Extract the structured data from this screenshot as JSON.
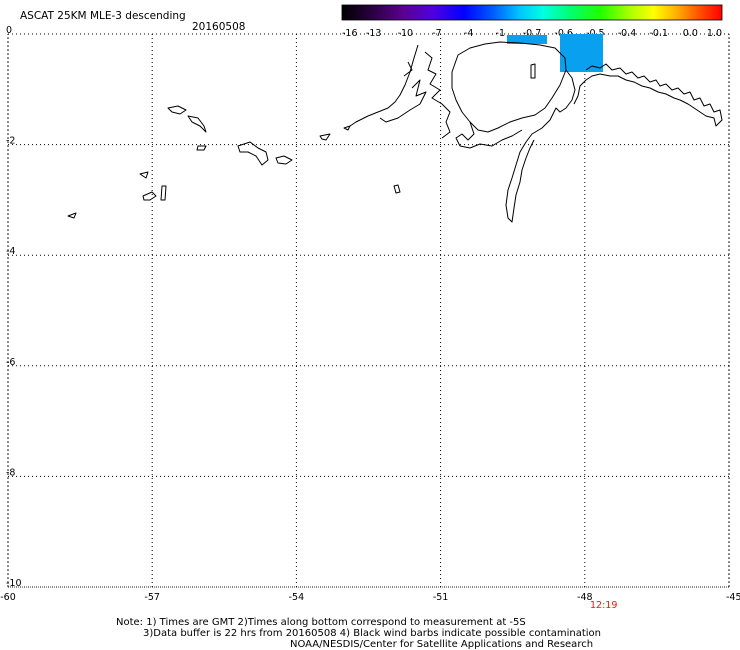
{
  "header": {
    "title": "ASCAT 25KM MLE-3 descending",
    "date": "20160508"
  },
  "colorbar": {
    "labels": [
      "-16",
      "-13",
      "-10",
      "-7",
      "-4",
      "-1",
      "-0.7",
      "-0.6",
      "-0.5",
      "-0.4",
      "-0.1",
      "0.0",
      "1.0"
    ],
    "colors": [
      "#000000",
      "#3a0060",
      "#6a00b0",
      "#2000ff",
      "#0070ff",
      "#00c0ff",
      "#00e0c0",
      "#00ff60",
      "#40ff00",
      "#c0ff00",
      "#ffd000",
      "#ff6000",
      "#ff0000"
    ]
  },
  "map": {
    "lon_range": [
      -60,
      -45
    ],
    "lat_range": [
      -10,
      0
    ],
    "x_ticks": [
      "-60",
      "-57",
      "-54",
      "-51",
      "-48",
      "-45"
    ],
    "y_ticks": [
      "0",
      "-2",
      "-4",
      "-6",
      "-8",
      "-10"
    ],
    "time_label": "12:19",
    "swath_color": "#0aa0f0"
  },
  "notes": {
    "line1": "Note: 1) Times are GMT 2)Times along bottom correspond to measurement at -5S",
    "line2": "3)Data buffer is 22 hrs from 20160508 4) Black wind barbs indicate possible contamination",
    "line3": "NOAA/NESDIS/Center for Satellite Applications and Research"
  }
}
